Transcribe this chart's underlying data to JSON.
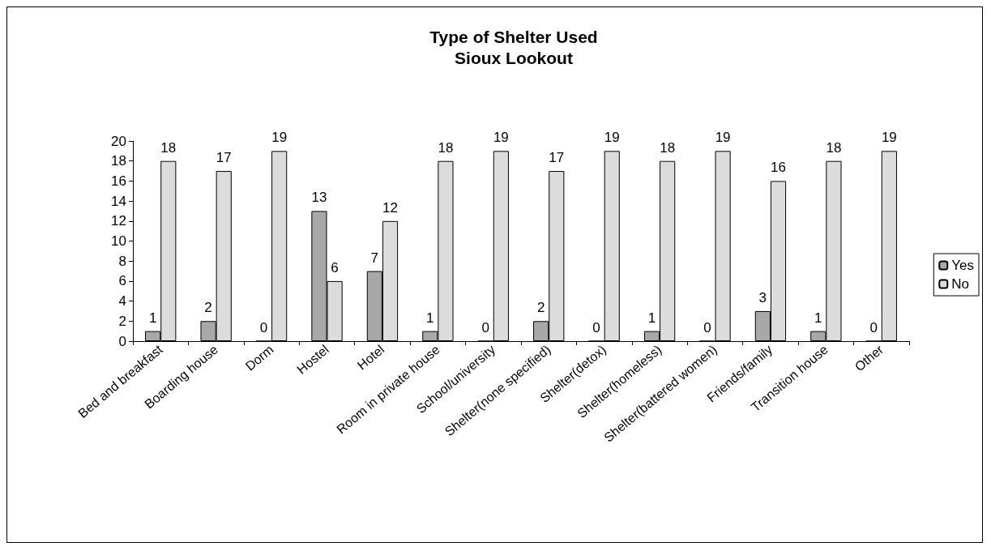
{
  "chart_data": {
    "type": "bar",
    "title": "Type of Shelter Used\nSioux Lookout",
    "categories": [
      "Bed and breakfast",
      "Boarding house",
      "Dorm",
      "Hostel",
      "Hotel",
      "Room in private house",
      "School/university",
      "Shelter(none specified)",
      "Shelter(detox)",
      "Shelter(homeless)",
      "Shelter(battered women)",
      "Friends/family",
      "Transition house",
      "Other"
    ],
    "series": [
      {
        "name": "Yes",
        "color": "#a8a8a8",
        "values": [
          1,
          2,
          0,
          13,
          7,
          1,
          0,
          2,
          0,
          1,
          0,
          3,
          1,
          0
        ]
      },
      {
        "name": "No",
        "color": "#dcdcdc",
        "values": [
          18,
          17,
          19,
          6,
          12,
          18,
          19,
          17,
          19,
          18,
          19,
          16,
          18,
          19
        ]
      }
    ],
    "ylim": [
      0,
      20
    ],
    "yticks": [
      0,
      2,
      4,
      6,
      8,
      10,
      12,
      14,
      16,
      18,
      20
    ],
    "grid": false,
    "legend": "right",
    "data_labels": true
  }
}
